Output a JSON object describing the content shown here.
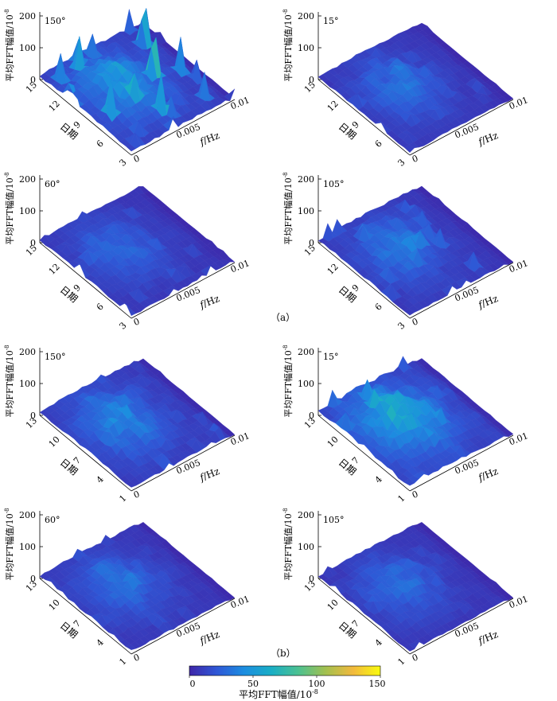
{
  "chart_data": {
    "type": "surface",
    "zlabel": "平均FFT幅值/10",
    "zlabel_exp": "-8",
    "date_label": "日期",
    "freq_label_italic": "f",
    "freq_label_unit": "/Hz",
    "zticks": [
      "0",
      "100",
      "200"
    ],
    "zlim": [
      0,
      200
    ],
    "xlim_hz": [
      0,
      0.01
    ],
    "xticks": [
      "0",
      "0.005",
      "0.01"
    ],
    "colormap": [
      "#3e26a8",
      "#2f57d6",
      "#1c8de0",
      "#1aaec5",
      "#4cc191",
      "#a3c04f",
      "#f2b93d",
      "#f9fb0e"
    ],
    "colorbar": {
      "min": 0,
      "max": 150,
      "ticks": [
        "0",
        "50",
        "100",
        "150"
      ],
      "label": "平均FFT幅值/10",
      "label_exp": "-8"
    },
    "groups": [
      {
        "label": "（a）",
        "date_ticks": [
          "15",
          "12",
          "9",
          "6",
          "3"
        ],
        "panels": [
          {
            "angle": "150°",
            "peak": 150,
            "mean_level": 45
          },
          {
            "angle": "15°",
            "peak": 50,
            "mean_level": 30
          },
          {
            "angle": "60°",
            "peak": 55,
            "mean_level": 28
          },
          {
            "angle": "105°",
            "peak": 75,
            "mean_level": 32
          }
        ]
      },
      {
        "label": "（b）",
        "date_ticks": [
          "13",
          "10",
          "7",
          "4",
          "1"
        ],
        "panels": [
          {
            "angle": "150°",
            "peak": 60,
            "mean_level": 38
          },
          {
            "angle": "15°",
            "peak": 100,
            "mean_level": 55
          },
          {
            "angle": "60°",
            "peak": 45,
            "mean_level": 30
          },
          {
            "angle": "105°",
            "peak": 45,
            "mean_level": 28
          }
        ]
      }
    ]
  }
}
